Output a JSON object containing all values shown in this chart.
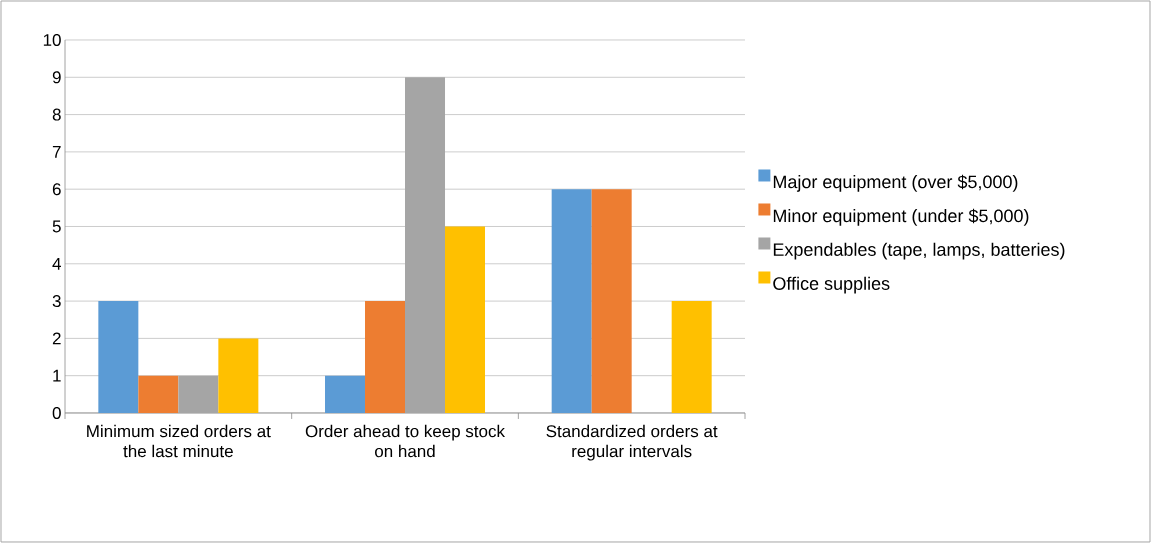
{
  "chart_data": {
    "type": "bar",
    "categories": [
      "Minimum sized orders at the last minute",
      "Order ahead to keep stock on hand",
      "Standardized orders at regular intervals"
    ],
    "series": [
      {
        "name": "Major equipment (over $5,000)",
        "color": "#5b9bd5",
        "values": [
          3,
          1,
          6
        ]
      },
      {
        "name": "Minor equipment (under $5,000)",
        "color": "#ed7d31",
        "values": [
          1,
          3,
          6
        ]
      },
      {
        "name": "Expendables (tape, lamps, batteries)",
        "color": "#a5a5a5",
        "values": [
          1,
          9,
          0
        ]
      },
      {
        "name": "Office supplies",
        "color": "#ffc000",
        "values": [
          2,
          5,
          3
        ]
      }
    ],
    "ylim": [
      0,
      10
    ],
    "yticks": [
      0,
      1,
      2,
      3,
      4,
      5,
      6,
      7,
      8,
      9,
      10
    ],
    "grid": "y",
    "legend": "right"
  }
}
